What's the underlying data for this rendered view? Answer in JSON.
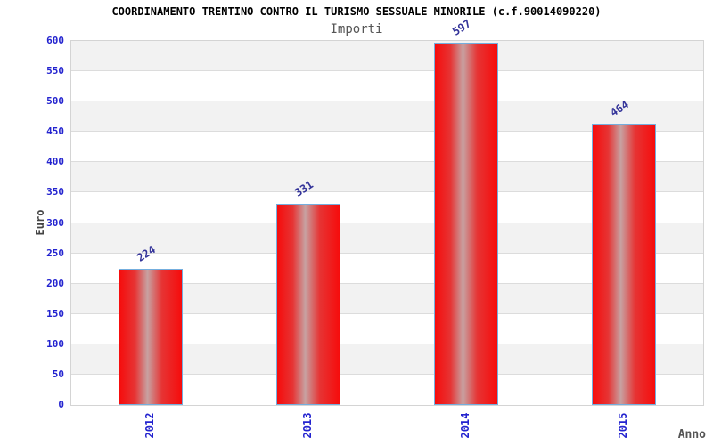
{
  "title": "COORDINAMENTO TRENTINO CONTRO IL TURISMO SESSUALE MINORILE (c.f.90014090220)",
  "subtitle": "Importi",
  "chart_data": {
    "type": "bar",
    "categories": [
      "2012",
      "2013",
      "2014",
      "2015"
    ],
    "values": [
      224,
      331,
      597,
      464
    ],
    "title": "COORDINAMENTO TRENTINO CONTRO IL TURISMO SESSUALE MINORILE (c.f.90014090220)",
    "subtitle": "Importi",
    "xlabel": "Anno",
    "ylabel": "Euro",
    "ylim": [
      0,
      600
    ],
    "ytick_step": 50,
    "yticks": [
      0,
      50,
      100,
      150,
      200,
      250,
      300,
      350,
      400,
      450,
      500,
      550,
      600
    ],
    "grid": true,
    "legend": "none",
    "colors": {
      "band_gray": "#f2f2f2",
      "band_white": "#ffffff",
      "gridline": "#dcdcdc",
      "plot_border": "#d4d4d4",
      "bar_edge_red": "#f60c0c",
      "bar_mid_red": "#e63434",
      "bar_center_light": "#c7a2a2",
      "bar_border_blue": "#74aede",
      "tick_label_blue": "#2323cf",
      "value_label_blue": "#333399",
      "subtitle_gray": "#555555",
      "axis_title_gray": "#444444"
    }
  }
}
